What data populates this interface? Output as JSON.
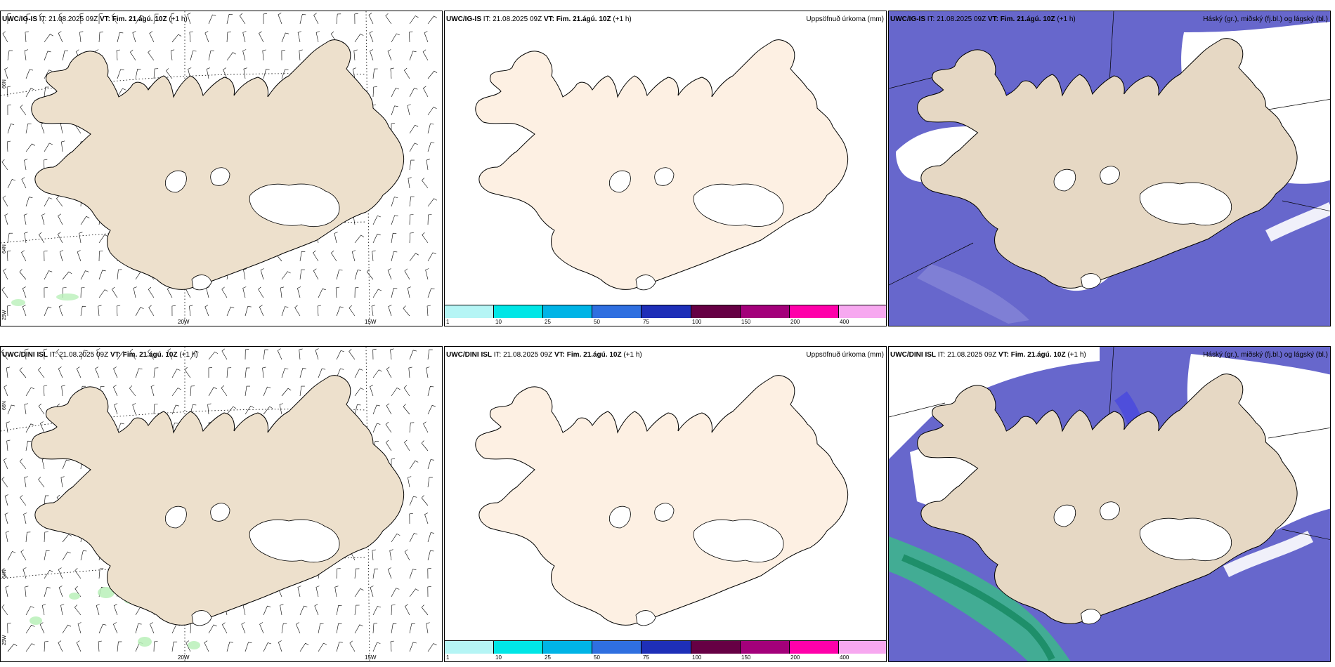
{
  "rows": [
    {
      "model": "UWC/IG-IS",
      "it_label": "IT: 21.08.2025 09Z",
      "vt_label": "VT: Fim. 21.ágú. 10Z",
      "lead": "(+1 h)"
    },
    {
      "model": "UWC/DINI ISL",
      "it_label": "IT: 21.08.2025 09Z",
      "vt_label": "VT: Fim. 21.ágú. 10Z",
      "lead": "(+1 h)"
    }
  ],
  "panels": {
    "precip_title": "Uppsöfnuð úrkoma (mm)",
    "cloud_title": "Háský (gr.), miðský (fj.bl.) og lágský (bl.)"
  },
  "axis_labels": {
    "lat_66": "66N",
    "lat_64": "64N",
    "lon_25": "25W",
    "lon_20": "20W",
    "lon_15": "15W"
  },
  "colorbar": {
    "colors": [
      "#b5f5f5",
      "#00e6e6",
      "#00b4e6",
      "#2f6fe0",
      "#1e2fb8",
      "#660044",
      "#a3007a",
      "#ff00aa",
      "#f7a8f0"
    ],
    "ticks": [
      "1",
      "10",
      "25",
      "50",
      "75",
      "100",
      "150",
      "200",
      "400"
    ]
  },
  "colors": {
    "land": "#ede0cc",
    "land_precip_panel": "#fdf0e3",
    "ocean_cloud": "#6767cc",
    "mid_cloud_blue": "#4a4ae0",
    "high_cloud_green": "#3cb98a",
    "light_precip_green": "#b9f0b9"
  }
}
